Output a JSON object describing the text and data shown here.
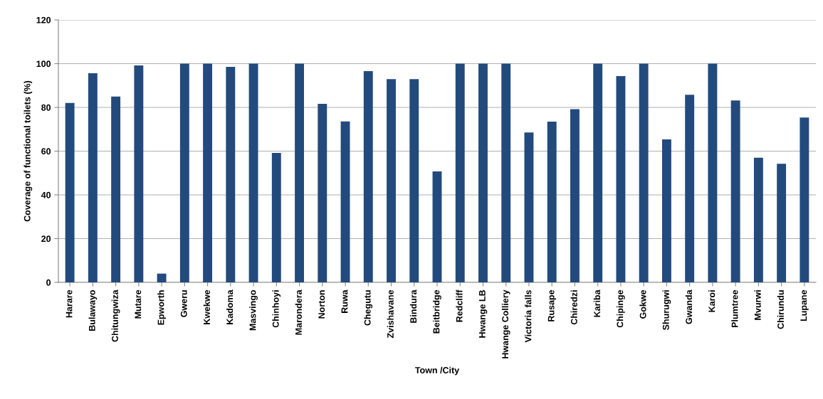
{
  "chart_data": {
    "type": "bar",
    "xlabel": "Town /City",
    "ylabel": "Coverage of functional toilets (%)",
    "categories": [
      "Harare",
      "Bulawayo",
      "Chitungwiza",
      "Mutare",
      "Epworth",
      "Gweru",
      "Kwekwe",
      "Kadoma",
      "Masvingo",
      "Chinhoyi",
      "Marondera",
      "Norton",
      "Ruwa",
      "Chegutu",
      "Zvishavane",
      "Bindura",
      "Beitbridge",
      "Redcliff",
      "Hwange LB",
      "Hwange Colliery",
      "Victoria falls",
      "Rusape",
      "Chiredzi",
      "Kariba",
      "Chipinge",
      "Gokwe",
      "Shurugwi",
      "Gwanda",
      "Karoi",
      "Plumtree",
      "Mvurwi",
      "Chirundu",
      "Lupane"
    ],
    "values": [
      82,
      95.6,
      85,
      99.2,
      4,
      100,
      100,
      98.5,
      100,
      59.2,
      100,
      81.6,
      73.6,
      96.6,
      92.9,
      92.9,
      50.7,
      100,
      100,
      100,
      68.5,
      73.5,
      79.2,
      100,
      94.3,
      100,
      65.4,
      85.8,
      100,
      83.2,
      57,
      54.2,
      75.4
    ],
    "color": "#234a7c",
    "ylim": [
      0,
      120
    ],
    "yticks": [
      0,
      20,
      40,
      60,
      80,
      100,
      120
    ],
    "grid": "y",
    "legend": false
  }
}
